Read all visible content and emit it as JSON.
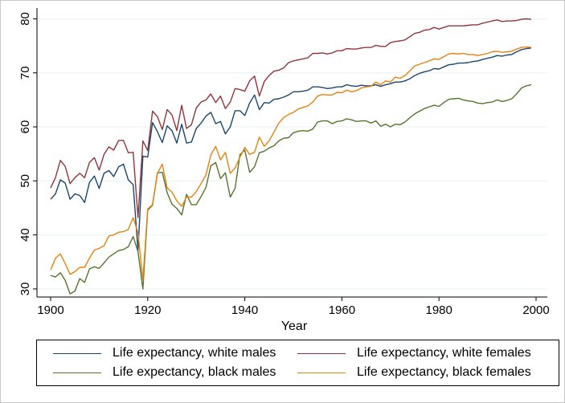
{
  "chart_data": {
    "type": "line",
    "xlabel": "Year",
    "ylabel": "",
    "xlim": [
      1900,
      2000
    ],
    "ylim": [
      28.5,
      82
    ],
    "xticks": [
      1900,
      1920,
      1940,
      1960,
      1980,
      2000
    ],
    "yticks": [
      30,
      40,
      50,
      60,
      70,
      80
    ],
    "grid": true,
    "legend_position": "bottom",
    "x": [
      1900,
      1901,
      1902,
      1903,
      1904,
      1905,
      1906,
      1907,
      1908,
      1909,
      1910,
      1911,
      1912,
      1913,
      1914,
      1915,
      1916,
      1917,
      1918,
      1919,
      1920,
      1921,
      1922,
      1923,
      1924,
      1925,
      1926,
      1927,
      1928,
      1929,
      1930,
      1931,
      1932,
      1933,
      1934,
      1935,
      1936,
      1937,
      1938,
      1939,
      1940,
      1941,
      1942,
      1943,
      1944,
      1945,
      1946,
      1947,
      1948,
      1949,
      1950,
      1951,
      1952,
      1953,
      1954,
      1955,
      1956,
      1957,
      1958,
      1959,
      1960,
      1961,
      1962,
      1963,
      1964,
      1965,
      1966,
      1967,
      1968,
      1969,
      1970,
      1971,
      1972,
      1973,
      1974,
      1975,
      1976,
      1977,
      1978,
      1979,
      1980,
      1981,
      1982,
      1983,
      1984,
      1985,
      1986,
      1987,
      1988,
      1989,
      1990,
      1991,
      1992,
      1993,
      1994,
      1995,
      1996,
      1997,
      1998,
      1999
    ],
    "series": [
      {
        "name": "Life expectancy, white males",
        "color": "#1a476f",
        "values": [
          46.6,
          47.6,
          50.2,
          49.6,
          46.6,
          47.6,
          47.3,
          46.0,
          49.7,
          50.9,
          48.6,
          51.4,
          51.9,
          50.8,
          52.6,
          53.1,
          50.2,
          49.3,
          37.1,
          54.6,
          54.4,
          60.8,
          59.1,
          57.1,
          60.2,
          59.3,
          57.0,
          60.5,
          57.0,
          57.2,
          59.7,
          60.7,
          62.0,
          62.7,
          60.6,
          61.0,
          58.7,
          60.0,
          63.0,
          63.0,
          62.1,
          64.4,
          65.9,
          63.2,
          64.5,
          64.4,
          65.1,
          65.2,
          65.5,
          65.9,
          66.5,
          66.5,
          66.6,
          66.8,
          67.4,
          67.4,
          67.3,
          67.1,
          67.2,
          67.4,
          67.4,
          67.8,
          67.6,
          67.5,
          67.7,
          67.6,
          67.6,
          67.8,
          67.5,
          67.8,
          68.0,
          68.3,
          68.3,
          68.5,
          68.9,
          69.5,
          69.9,
          70.2,
          70.4,
          70.8,
          70.7,
          71.1,
          71.5,
          71.6,
          71.8,
          71.8,
          71.9,
          72.1,
          72.2,
          72.5,
          72.7,
          72.9,
          73.2,
          73.1,
          73.3,
          73.4,
          73.9,
          74.3,
          74.5,
          74.6
        ]
      },
      {
        "name": "Life expectancy, white females",
        "color": "#90353b",
        "values": [
          48.7,
          50.6,
          53.8,
          52.7,
          49.5,
          50.6,
          51.4,
          50.6,
          53.4,
          54.3,
          52.0,
          54.9,
          56.3,
          55.7,
          57.5,
          57.5,
          55.2,
          55.3,
          43.2,
          57.4,
          55.6,
          62.9,
          61.9,
          59.5,
          63.2,
          62.2,
          59.3,
          64.0,
          59.7,
          60.4,
          63.5,
          64.6,
          65.0,
          66.1,
          64.5,
          65.7,
          63.4,
          64.6,
          67.1,
          66.9,
          66.6,
          68.5,
          69.4,
          65.7,
          68.4,
          69.5,
          70.3,
          70.5,
          70.9,
          71.9,
          72.2,
          72.4,
          72.6,
          72.8,
          73.6,
          73.6,
          73.7,
          73.5,
          73.7,
          74.1,
          74.1,
          74.5,
          74.4,
          74.4,
          74.6,
          74.7,
          74.7,
          75.1,
          74.9,
          74.9,
          75.6,
          75.8,
          75.9,
          76.1,
          76.7,
          77.3,
          77.5,
          77.9,
          78.0,
          78.4,
          78.1,
          78.4,
          78.7,
          78.7,
          78.7,
          78.7,
          78.8,
          78.9,
          78.9,
          79.2,
          79.4,
          79.6,
          79.8,
          79.5,
          79.6,
          79.6,
          79.7,
          79.9,
          80.0,
          79.9
        ]
      },
      {
        "name": "Life expectancy, black males",
        "color": "#55752f",
        "values": [
          32.5,
          32.2,
          33.0,
          31.6,
          29.1,
          29.6,
          31.9,
          31.2,
          33.7,
          34.1,
          33.8,
          34.8,
          35.9,
          36.5,
          37.1,
          37.3,
          37.8,
          39.7,
          36.9,
          30.0,
          44.6,
          45.5,
          51.5,
          51.6,
          47.8,
          45.7,
          44.9,
          43.7,
          47.5,
          45.6,
          45.6,
          47.1,
          48.8,
          52.8,
          53.4,
          50.4,
          51.5,
          47.0,
          48.6,
          54.9,
          55.7,
          51.6,
          52.6,
          55.2,
          55.5,
          56.1,
          56.5,
          57.4,
          57.9,
          58.0,
          58.9,
          59.2,
          59.3,
          59.2,
          59.6,
          60.9,
          61.1,
          61.1,
          60.6,
          61.0,
          61.1,
          61.5,
          61.3,
          61.0,
          61.1,
          61.1,
          60.7,
          61.1,
          60.1,
          60.5,
          60.0,
          60.5,
          60.4,
          60.9,
          61.7,
          62.4,
          62.9,
          63.4,
          63.7,
          64.0,
          63.8,
          64.5,
          65.1,
          65.2,
          65.3,
          65.0,
          64.8,
          64.7,
          64.4,
          64.3,
          64.5,
          64.6,
          65.0,
          64.7,
          64.9,
          65.2,
          66.1,
          67.2,
          67.6,
          67.8
        ]
      },
      {
        "name": "Life expectancy, black females",
        "color": "#e8820f",
        "values": [
          33.5,
          35.7,
          36.5,
          34.7,
          32.7,
          33.2,
          34.0,
          34.0,
          35.7,
          37.2,
          37.5,
          38.0,
          39.8,
          40.0,
          40.5,
          40.6,
          41.0,
          43.2,
          40.4,
          31.7,
          44.8,
          45.6,
          51.4,
          53.1,
          48.7,
          47.9,
          46.3,
          45.3,
          47.0,
          47.0,
          48.0,
          49.5,
          51.1,
          54.8,
          56.4,
          53.9,
          55.3,
          51.4,
          52.4,
          54.4,
          56.2,
          54.9,
          55.3,
          58.1,
          56.4,
          57.4,
          59.0,
          60.7,
          61.7,
          62.3,
          62.7,
          63.3,
          63.6,
          63.9,
          64.6,
          65.7,
          66.0,
          65.9,
          65.9,
          66.4,
          66.3,
          66.8,
          66.5,
          66.7,
          67.2,
          67.4,
          67.5,
          68.3,
          67.8,
          68.5,
          68.3,
          69.2,
          69.0,
          69.5,
          70.4,
          71.3,
          71.6,
          71.9,
          72.2,
          72.6,
          72.5,
          73.0,
          73.5,
          73.6,
          73.5,
          73.6,
          73.4,
          73.4,
          73.2,
          73.4,
          73.6,
          73.9,
          74.0,
          73.8,
          73.9,
          74.0,
          74.4,
          74.7,
          74.8,
          74.7
        ]
      }
    ]
  }
}
